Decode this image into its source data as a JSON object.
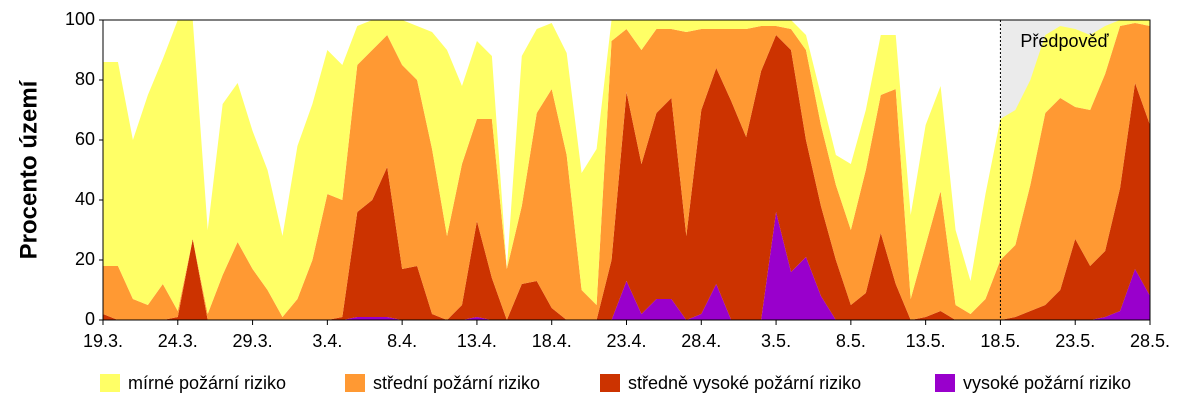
{
  "chart_data": {
    "type": "stacked-area",
    "ylabel": "Procento území",
    "categories": [
      "19.3.",
      null,
      null,
      null,
      null,
      "24.3.",
      null,
      null,
      null,
      null,
      "29.3.",
      null,
      null,
      null,
      null,
      "3.4.",
      null,
      null,
      null,
      null,
      "8.4.",
      null,
      null,
      null,
      null,
      "13.4.",
      null,
      null,
      null,
      null,
      "18.4.",
      null,
      null,
      null,
      null,
      "23.4.",
      null,
      null,
      null,
      null,
      "28.4.",
      null,
      null,
      null,
      null,
      "3.5.",
      null,
      null,
      null,
      null,
      "8.5.",
      null,
      null,
      null,
      null,
      "13.5.",
      null,
      null,
      null,
      null,
      "18.5.",
      null,
      null,
      null,
      null,
      "23.5.",
      null,
      null,
      null,
      null,
      "28.5."
    ],
    "series": [
      {
        "name": "vysoké požární riziko",
        "color": "#9900cc",
        "values": [
          0,
          0,
          0,
          0,
          0,
          0,
          0,
          0,
          0,
          0,
          0,
          0,
          0,
          0,
          0,
          0,
          0,
          1,
          1,
          1,
          0,
          0,
          0,
          0,
          0,
          1,
          0,
          0,
          0,
          0,
          0,
          0,
          0,
          0,
          0,
          13,
          2,
          7,
          7,
          0,
          2,
          12,
          0,
          0,
          0,
          36,
          16,
          21,
          8,
          0,
          0,
          0,
          0,
          0,
          0,
          0,
          0,
          0,
          0,
          0,
          0,
          0,
          0,
          0,
          0,
          0,
          0,
          1,
          3,
          17,
          8
        ]
      },
      {
        "name": "středně vysoké požární riziko",
        "color": "#cc3300",
        "values": [
          2,
          0,
          0,
          0,
          0,
          1,
          27,
          0,
          0,
          0,
          0,
          0,
          0,
          0,
          0,
          0,
          1,
          35,
          39,
          50,
          17,
          18,
          2,
          0,
          5,
          32,
          14,
          0,
          12,
          13,
          4,
          0,
          0,
          0,
          20,
          63,
          50,
          62,
          67,
          28,
          68,
          72,
          73,
          61,
          83,
          59,
          74,
          39,
          30,
          20,
          5,
          9,
          29,
          12,
          0,
          1,
          3,
          0,
          0,
          0,
          0,
          1,
          3,
          5,
          10,
          27,
          18,
          22,
          41,
          62,
          57
        ]
      },
      {
        "name": "střední požární riziko",
        "color": "#ff9933",
        "values": [
          16,
          18,
          7,
          5,
          12,
          2,
          0,
          2,
          15,
          26,
          17,
          10,
          1,
          7,
          20,
          42,
          39,
          49,
          50,
          44,
          68,
          62,
          55,
          28,
          47,
          34,
          53,
          17,
          26,
          56,
          73,
          55,
          10,
          5,
          73,
          21,
          38,
          28,
          23,
          68,
          27,
          13,
          24,
          36,
          15,
          3,
          7,
          30,
          27,
          25,
          25,
          41,
          46,
          65,
          7,
          24,
          40,
          5,
          2,
          7,
          20,
          24,
          42,
          64,
          64,
          44,
          52,
          59,
          54,
          20,
          33
        ]
      },
      {
        "name": "mírné požární riziko",
        "color": "#ffff66",
        "values": [
          68,
          68,
          53,
          70,
          75,
          97,
          73,
          28,
          57,
          53,
          46,
          40,
          27,
          51,
          52,
          48,
          45,
          13,
          10,
          5,
          15,
          18,
          39,
          62,
          26,
          26,
          21,
          0,
          50,
          28,
          22,
          34,
          39,
          52,
          7,
          3,
          10,
          3,
          3,
          4,
          3,
          3,
          3,
          3,
          2,
          2,
          3,
          5,
          10,
          10,
          22,
          20,
          20,
          18,
          28,
          40,
          35,
          25,
          11,
          35,
          47,
          45,
          35,
          26,
          24,
          26,
          25,
          16,
          2,
          1,
          2
        ]
      }
    ],
    "ylim": [
      0,
      100
    ],
    "yticks": [
      0,
      20,
      40,
      60,
      80,
      100
    ],
    "grid": false,
    "annotation": {
      "text": "Předpověď",
      "at": "18.5."
    },
    "legend": "bottom"
  }
}
